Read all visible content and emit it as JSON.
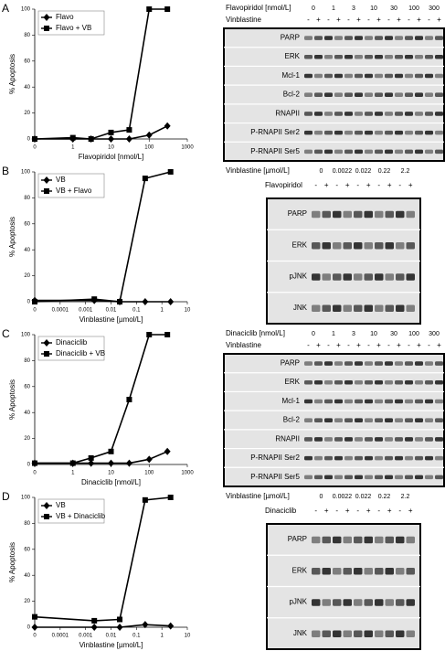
{
  "chart_data": [
    {
      "type": "line",
      "panel_label": "A",
      "x_label": "Flavopiridol [nmol/L]",
      "y_label": "% Apoptosis",
      "log_x": true,
      "legend": "upper left",
      "x": [
        0.1,
        1,
        3,
        10,
        30,
        100,
        300
      ],
      "series": [
        {
          "name": "Flavo",
          "color": "#000000",
          "marker": "diamond",
          "values": [
            0,
            0,
            0,
            0,
            0,
            3,
            10
          ]
        },
        {
          "name": "Flavo + VB",
          "color": "#000000",
          "marker": "square",
          "values": [
            0,
            1,
            0,
            5,
            7,
            100,
            100
          ]
        }
      ],
      "xlim": [
        0.1,
        1000
      ],
      "xticks": [
        {
          "value": 0.1,
          "label": "0"
        },
        1,
        10,
        100,
        1000
      ],
      "ylim": [
        0,
        100
      ],
      "yticks": [
        0,
        20,
        40,
        60,
        80,
        100
      ]
    },
    {
      "type": "line",
      "panel_label": "B",
      "x_label": "Vinblastine [µmol/L]",
      "y_label": "% Apoptosis",
      "log_x": true,
      "legend": "upper left",
      "x": [
        1e-05,
        0.0022,
        0.022,
        0.22,
        2.2
      ],
      "series": [
        {
          "name": "VB",
          "color": "#000000",
          "marker": "diamond",
          "values": [
            1,
            1,
            0,
            0,
            0
          ]
        },
        {
          "name": "VB + Flavo",
          "color": "#000000",
          "marker": "square",
          "values": [
            0,
            2,
            0,
            95,
            100
          ]
        }
      ],
      "xlim": [
        1e-05,
        10
      ],
      "xticks": [
        {
          "value": 1e-05,
          "label": "0"
        },
        0.0001,
        0.001,
        0.01,
        0.1,
        1,
        10
      ],
      "ylim": [
        0,
        100
      ],
      "yticks": [
        0,
        20,
        40,
        60,
        80,
        100
      ]
    },
    {
      "type": "line",
      "panel_label": "C",
      "x_label": "Dinaciclib [nmol/L]",
      "y_label": "% Apoptosis",
      "log_x": true,
      "legend": "upper left",
      "x": [
        0.1,
        1,
        3,
        10,
        30,
        100,
        300
      ],
      "series": [
        {
          "name": "Dinaciclib",
          "color": "#000000",
          "marker": "diamond",
          "values": [
            1,
            1,
            1,
            1,
            1,
            4,
            10
          ]
        },
        {
          "name": "Dinaciclib + VB",
          "color": "#000000",
          "marker": "square",
          "values": [
            1,
            1,
            5,
            10,
            50,
            100,
            100
          ]
        }
      ],
      "xlim": [
        0.1,
        1000
      ],
      "xticks": [
        {
          "value": 0.1,
          "label": "0"
        },
        1,
        10,
        100,
        1000
      ],
      "ylim": [
        0,
        100
      ],
      "yticks": [
        0,
        20,
        40,
        60,
        80,
        100
      ]
    },
    {
      "type": "line",
      "panel_label": "D",
      "x_label": "Vinblastine [µmol/L]",
      "y_label": "% Apoptosis",
      "log_x": true,
      "legend": "upper left",
      "x": [
        1e-05,
        0.0022,
        0.022,
        0.22,
        2.2
      ],
      "series": [
        {
          "name": "VB",
          "color": "#000000",
          "marker": "diamond",
          "values": [
            0,
            0,
            0,
            2,
            1
          ]
        },
        {
          "name": "VB + Dinaciclib",
          "color": "#000000",
          "marker": "square",
          "values": [
            8,
            5,
            6,
            98,
            100
          ]
        }
      ],
      "xlim": [
        1e-05,
        10
      ],
      "xticks": [
        {
          "value": 1e-05,
          "label": "0"
        },
        0.0001,
        0.001,
        0.01,
        0.1,
        1,
        10
      ],
      "ylim": [
        0,
        100
      ],
      "yticks": [
        0,
        20,
        40,
        60,
        80,
        100
      ]
    }
  ],
  "blots": [
    {
      "dose_label": "Flavopiridol [nmol/L]",
      "doses": [
        "0",
        "1",
        "3",
        "10",
        "30",
        "100",
        "300"
      ],
      "treatment": "Vinblastine",
      "signs": [
        "-",
        "+",
        "-",
        "+",
        "-",
        "+",
        "-",
        "+",
        "-",
        "+",
        "-",
        "+",
        "-",
        "+"
      ],
      "proteins": [
        "PARP",
        "ERK",
        "Mcl-1",
        "Bcl-2",
        "RNAPII",
        "P-RNAPII Ser2",
        "P-RNAPII Ser5"
      ]
    },
    {
      "dose_label": "Vinblastine [µmol/L]",
      "doses": [
        "0",
        "0.0022",
        "0.022",
        "0.22",
        "2.2"
      ],
      "treatment": "Flavopiridol",
      "signs": [
        "-",
        "+",
        "-",
        "+",
        "-",
        "+",
        "-",
        "+",
        "-",
        "+"
      ],
      "proteins": [
        "PARP",
        "ERK",
        "pJNK",
        "JNK"
      ]
    },
    {
      "dose_label": "Dinaciclib [nmol/L]",
      "doses": [
        "0",
        "1",
        "3",
        "10",
        "30",
        "100",
        "300"
      ],
      "treatment": "Vinblastine",
      "signs": [
        "-",
        "+",
        "-",
        "+",
        "-",
        "+",
        "-",
        "+",
        "-",
        "+",
        "-",
        "+",
        "-",
        "+"
      ],
      "proteins": [
        "PARP",
        "ERK",
        "Mcl-1",
        "Bcl-2",
        "RNAPII",
        "P-RNAPII Ser2",
        "P-RNAPII Ser5"
      ]
    },
    {
      "dose_label": "Vinblastine [µmol/L]",
      "doses": [
        "0",
        "0.0022",
        "0.022",
        "0.22",
        "2.2"
      ],
      "treatment": "Dinaciclib",
      "signs": [
        "-",
        "+",
        "-",
        "+",
        "-",
        "+",
        "-",
        "+",
        "-",
        "+"
      ],
      "proteins": [
        "PARP",
        "ERK",
        "pJNK",
        "JNK"
      ]
    }
  ]
}
